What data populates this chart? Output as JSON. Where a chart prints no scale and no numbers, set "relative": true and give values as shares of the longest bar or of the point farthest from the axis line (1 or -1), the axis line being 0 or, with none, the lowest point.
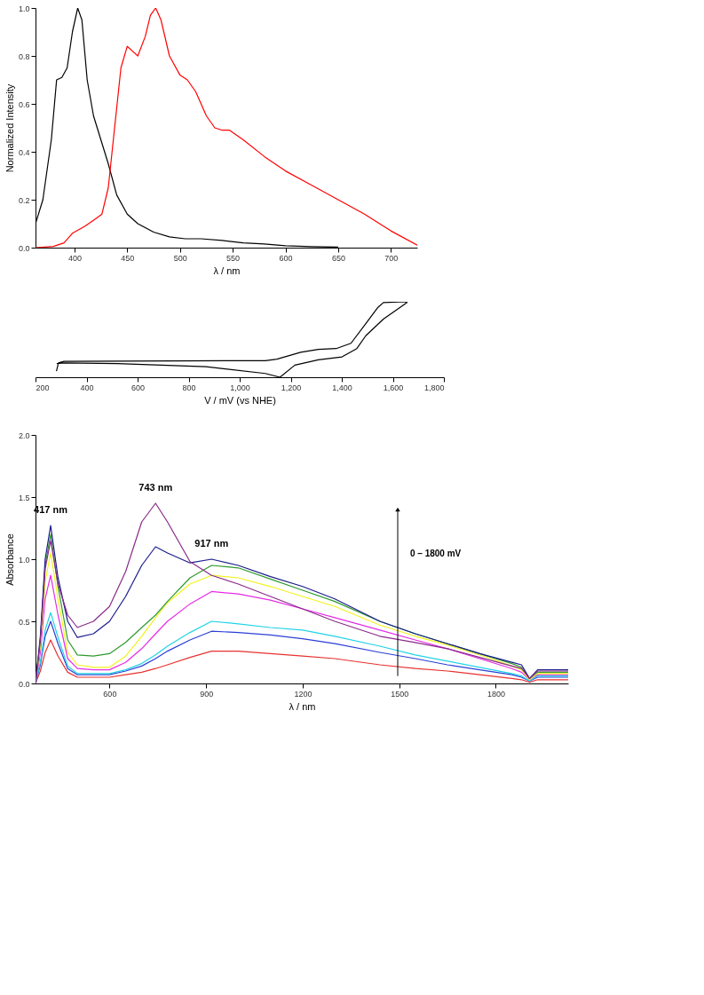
{
  "chart_data": [
    {
      "type": "line",
      "xlabel": "λ / nm",
      "ylabel": "Normalized Intensity",
      "xlim": [
        363,
        725
      ],
      "ylim": [
        0,
        1.0
      ],
      "xticks": [
        400,
        450,
        500,
        550,
        600,
        650,
        700
      ],
      "yticks": [
        {
          "value": 0,
          "label": "0.0"
        },
        0.2,
        0.4,
        0.6,
        0.8,
        {
          "value": 1,
          "label": "1.0"
        }
      ],
      "grid": false,
      "legend": false,
      "marker": "none",
      "line_style": "solid",
      "series": [
        {
          "color": "#000000",
          "x": [
            363,
            370,
            378,
            383,
            388,
            393,
            398,
            403,
            407,
            412,
            418,
            425,
            432,
            440,
            450,
            460,
            475,
            490,
            505,
            520,
            540,
            560,
            580,
            600,
            625,
            650
          ],
          "values": [
            0.1,
            0.2,
            0.45,
            0.7,
            0.71,
            0.75,
            0.9,
            1.0,
            0.95,
            0.7,
            0.55,
            0.45,
            0.35,
            0.22,
            0.14,
            0.1,
            0.065,
            0.045,
            0.037,
            0.037,
            0.03,
            0.02,
            0.015,
            0.008,
            0.004,
            0.002
          ]
        },
        {
          "color": "#ff0000",
          "x": [
            363,
            380,
            390,
            398,
            410,
            420,
            426,
            432,
            438,
            444,
            450,
            455,
            460,
            467,
            472,
            477,
            482,
            490,
            500,
            507,
            515,
            525,
            533,
            540,
            547,
            560,
            580,
            600,
            625,
            650,
            675,
            700,
            725
          ],
          "values": [
            0,
            0.005,
            0.02,
            0.06,
            0.09,
            0.12,
            0.14,
            0.25,
            0.5,
            0.75,
            0.84,
            0.82,
            0.8,
            0.88,
            0.97,
            1.0,
            0.95,
            0.8,
            0.72,
            0.7,
            0.65,
            0.55,
            0.5,
            0.49,
            0.49,
            0.45,
            0.38,
            0.32,
            0.26,
            0.2,
            0.14,
            0.07,
            0.01
          ]
        }
      ]
    },
    {
      "type": "line",
      "xlabel": "V / mV (vs NHE)",
      "relative": true,
      "xlim": [
        200,
        1800
      ],
      "xticks": [
        200,
        400,
        600,
        800,
        {
          "value": 1000,
          "label": "1,000"
        },
        {
          "value": 1200,
          "label": "1,200"
        },
        {
          "value": 1400,
          "label": "1,400"
        },
        {
          "value": 1600,
          "label": "1,600"
        },
        {
          "value": 1800,
          "label": "1,800"
        }
      ],
      "tick_labels": "x",
      "grid": false,
      "legend": false,
      "marker": "none",
      "line_style": "solid",
      "series": [
        {
          "color": "#000000",
          "x": [
            282,
            290,
            311,
            1100,
            1146,
            1239,
            1308,
            1378,
            1436,
            1494,
            1540,
            1563,
            1647,
            1656,
            1563,
            1494,
            1459,
            1401,
            1308,
            1216,
            1158,
            1100,
            868,
            520,
            311,
            283
          ],
          "values": [
            0.08,
            0.19,
            0.21,
            0.22,
            0.24,
            0.33,
            0.37,
            0.38,
            0.45,
            0.71,
            0.92,
            0.99,
            1.0,
            0.99,
            0.77,
            0.55,
            0.38,
            0.27,
            0.23,
            0.16,
            0.0,
            0.05,
            0.14,
            0.18,
            0.19,
            0.18
          ]
        }
      ]
    },
    {
      "type": "line",
      "xlabel": "λ / nm",
      "ylabel": "Absorbance",
      "xlim": [
        370,
        2025
      ],
      "ylim": [
        0,
        2.0
      ],
      "xticks": [
        600,
        900,
        1200,
        1500,
        1800
      ],
      "yticks": [
        {
          "value": 0,
          "label": "0.0"
        },
        0.5,
        {
          "value": 1,
          "label": "1.0"
        },
        1.5,
        {
          "value": 2,
          "label": "2.0"
        }
      ],
      "grid": false,
      "legend": false,
      "marker": "none",
      "line_style": "solid",
      "annotations": [
        {
          "text": "417 nm",
          "x": 417,
          "y": 1.27
        },
        {
          "text": "743 nm",
          "x": 743,
          "y": 1.45
        },
        {
          "text": "917 nm",
          "x": 917,
          "y": 1.0
        },
        "0 – 1800 mV"
      ],
      "x": [
        370,
        385,
        400,
        417,
        440,
        470,
        500,
        550,
        600,
        650,
        700,
        743,
        780,
        850,
        917,
        1000,
        1100,
        1200,
        1300,
        1440,
        1550,
        1650,
        1750,
        1850,
        1880,
        1905,
        1930,
        2025
      ],
      "series": [
        {
          "color": "#e8312f",
          "values": [
            0,
            0.1,
            0.25,
            0.35,
            0.22,
            0.09,
            0.05,
            0.05,
            0.05,
            0.07,
            0.09,
            0.12,
            0.15,
            0.21,
            0.26,
            0.26,
            0.24,
            0.22,
            0.2,
            0.15,
            0.12,
            0.1,
            0.07,
            0.04,
            0.03,
            0.01,
            0.03,
            0.03
          ]
        },
        {
          "color": "#2b3fd6",
          "values": [
            0,
            0.15,
            0.38,
            0.5,
            0.32,
            0.12,
            0.07,
            0.07,
            0.07,
            0.1,
            0.14,
            0.2,
            0.26,
            0.35,
            0.42,
            0.41,
            0.39,
            0.36,
            0.32,
            0.25,
            0.2,
            0.15,
            0.11,
            0.07,
            0.05,
            0.02,
            0.05,
            0.05
          ]
        },
        {
          "color": "#22d3e6",
          "values": [
            0,
            0.17,
            0.43,
            0.57,
            0.37,
            0.14,
            0.08,
            0.08,
            0.08,
            0.11,
            0.16,
            0.23,
            0.3,
            0.41,
            0.5,
            0.48,
            0.45,
            0.43,
            0.38,
            0.3,
            0.23,
            0.18,
            0.13,
            0.08,
            0.06,
            0.02,
            0.06,
            0.06
          ]
        },
        {
          "color": "#e62be6",
          "values": [
            0,
            0.25,
            0.68,
            0.87,
            0.55,
            0.2,
            0.12,
            0.11,
            0.11,
            0.17,
            0.28,
            0.4,
            0.5,
            0.64,
            0.74,
            0.72,
            0.67,
            0.6,
            0.53,
            0.43,
            0.35,
            0.28,
            0.2,
            0.12,
            0.09,
            0.03,
            0.07,
            0.07
          ]
        },
        {
          "color": "#f2f21e",
          "values": [
            0,
            0.3,
            0.82,
            1.05,
            0.68,
            0.25,
            0.15,
            0.13,
            0.13,
            0.22,
            0.38,
            0.53,
            0.65,
            0.8,
            0.87,
            0.85,
            0.78,
            0.7,
            0.62,
            0.47,
            0.38,
            0.31,
            0.23,
            0.14,
            0.11,
            0.03,
            0.08,
            0.08
          ]
        },
        {
          "color": "#2e9a2e",
          "values": [
            0,
            0.35,
            0.95,
            1.2,
            0.78,
            0.35,
            0.23,
            0.22,
            0.24,
            0.33,
            0.45,
            0.55,
            0.66,
            0.85,
            0.95,
            0.93,
            0.84,
            0.75,
            0.66,
            0.5,
            0.4,
            0.32,
            0.24,
            0.16,
            0.13,
            0.04,
            0.09,
            0.09
          ]
        },
        {
          "color": "#1c1c8c",
          "values": [
            0,
            0.38,
            1.0,
            1.27,
            0.85,
            0.5,
            0.37,
            0.4,
            0.5,
            0.7,
            0.95,
            1.1,
            1.05,
            0.97,
            1.0,
            0.95,
            0.86,
            0.78,
            0.68,
            0.5,
            0.4,
            0.32,
            0.24,
            0.17,
            0.15,
            0.04,
            0.11,
            0.11
          ]
        },
        {
          "color": "#8a2b8a",
          "values": [
            0,
            0.35,
            0.92,
            1.15,
            0.8,
            0.55,
            0.45,
            0.5,
            0.62,
            0.9,
            1.3,
            1.45,
            1.3,
            0.98,
            0.87,
            0.8,
            0.7,
            0.6,
            0.5,
            0.38,
            0.33,
            0.28,
            0.21,
            0.14,
            0.12,
            0.04,
            0.1,
            0.1
          ]
        }
      ]
    }
  ]
}
